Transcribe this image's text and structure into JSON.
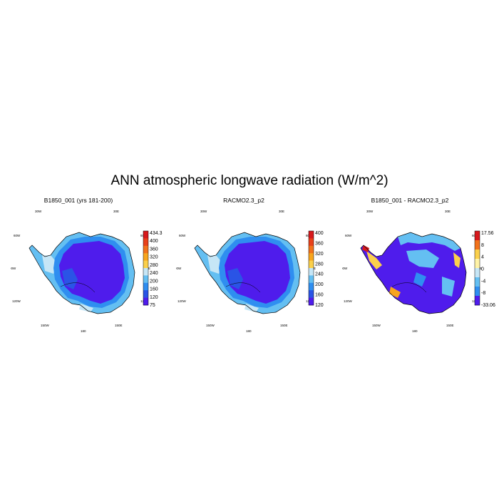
{
  "title": "ANN atmospheric longwave radiation (W/m^2)",
  "panels": [
    {
      "title": "B1850_001 (yrs 181-200)",
      "variant": "model",
      "colorbar": {
        "labels": [
          "434.3",
          "400",
          "360",
          "320",
          "280",
          "240",
          "200",
          "160",
          "120",
          "75"
        ],
        "colors": [
          "#d7191c",
          "#e8411a",
          "#f2721b",
          "#f8a51d",
          "#fbd04b",
          "#c6e6f6",
          "#64bff2",
          "#2f8ef0",
          "#2a54e6",
          "#4f1cec"
        ]
      }
    },
    {
      "title": "RACMO2.3_p2",
      "variant": "obs",
      "colorbar": {
        "labels": [
          "400",
          "360",
          "320",
          "280",
          "240",
          "200",
          "160",
          "120"
        ],
        "colors": [
          "#d7191c",
          "#e8411a",
          "#f2721b",
          "#f8a51d",
          "#fbd04b",
          "#c6e6f6",
          "#64bff2",
          "#2f8ef0",
          "#2a54e6",
          "#4f1cec"
        ]
      }
    },
    {
      "title": "B1850_001 - RACMO2.3_p2",
      "variant": "diff",
      "colorbar": {
        "labels": [
          "17.56",
          "8",
          "4",
          "0",
          "-4",
          "-8",
          "-33.06"
        ],
        "colors": [
          "#d7191c",
          "#f2721b",
          "#fbd04b",
          "#fff3a6",
          "#c6e6f6",
          "#64bff2",
          "#2f8ef0",
          "#4f1cec"
        ]
      }
    }
  ],
  "geo_labels": {
    "top_left": "30W",
    "top_right": "30E",
    "left_upper": "60W",
    "right_upper": "60E",
    "left_mid": "90W",
    "right_mid": "90E",
    "left_lower": "120W",
    "right_lower": "120E",
    "bottom_left": "150W",
    "bottom_right": "150E",
    "bottom": "180"
  },
  "colors": {
    "interior": "#4f1cec",
    "ring2": "#2a54e6",
    "ring3": "#2f8ef0",
    "coast": "#64bff2",
    "ice_shelf": "#c6e6f6",
    "outline": "#000000"
  }
}
